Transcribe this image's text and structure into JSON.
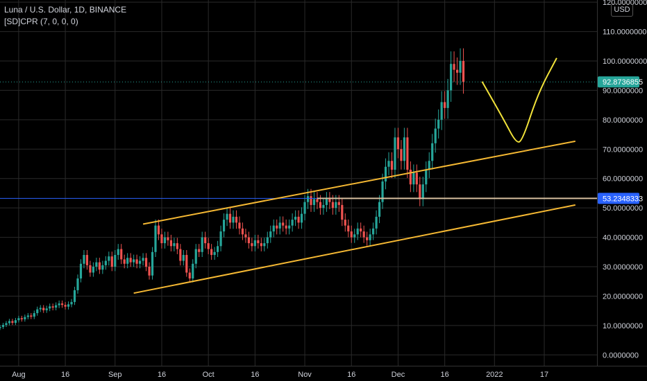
{
  "header": {
    "title": "Luna / U.S. Dollar, 1D, BINANCE",
    "indicator": "[SD]CPR (7, 0, 0, 0)",
    "currency": "USD"
  },
  "price_badges": {
    "last_price": "92.8736855",
    "horizontal_level": "53.2348333"
  },
  "colors": {
    "background": "#000000",
    "up": "#26a69a",
    "down": "#ef5350",
    "channel": "#f5b833",
    "drawing": "#f2e33a",
    "level_line": "#2962ff",
    "horizontal_ray": "#d8c0a0",
    "last_price_badge": "#26a69a",
    "level_badge": "#2962ff",
    "grid": "#2a2a2a",
    "axis_text": "#d1d4dc"
  },
  "chart_data": {
    "type": "candlestick",
    "title": "Luna / U.S. Dollar, 1D, BINANCE",
    "ylim": [
      -2,
      124
    ],
    "y_ticks": [
      {
        "value": 0,
        "label": "0.0000000"
      },
      {
        "value": 10,
        "label": "10.0000000"
      },
      {
        "value": 20,
        "label": "20.0000000"
      },
      {
        "value": 30,
        "label": "30.0000000"
      },
      {
        "value": 40,
        "label": "40.0000000"
      },
      {
        "value": 50,
        "label": "50.0000000"
      },
      {
        "value": 60,
        "label": "60.0000000"
      },
      {
        "value": 70,
        "label": "70.0000000"
      },
      {
        "value": 80,
        "label": "80.0000000"
      },
      {
        "value": 90,
        "label": "90.0000000"
      },
      {
        "value": 100,
        "label": "100.0000000"
      },
      {
        "value": 110,
        "label": "110.0000000"
      },
      {
        "value": 120,
        "label": "120.0000000"
      }
    ],
    "x_ticks": [
      {
        "date": "2021-08-01",
        "label": "Aug"
      },
      {
        "date": "2021-08-16",
        "label": "16"
      },
      {
        "date": "2021-09-01",
        "label": "Sep"
      },
      {
        "date": "2021-09-16",
        "label": "16"
      },
      {
        "date": "2021-10-01",
        "label": "Oct"
      },
      {
        "date": "2021-10-16",
        "label": "16"
      },
      {
        "date": "2021-11-01",
        "label": "Nov"
      },
      {
        "date": "2021-11-16",
        "label": "16"
      },
      {
        "date": "2021-12-01",
        "label": "Dec"
      },
      {
        "date": "2021-12-16",
        "label": "16"
      },
      {
        "date": "2022-01-01",
        "label": "2022"
      },
      {
        "date": "2022-01-17",
        "label": "17"
      }
    ],
    "start_date": "2021-07-26",
    "closes": [
      9.5,
      10.2,
      10.8,
      11.5,
      10.9,
      11.8,
      12.5,
      12.1,
      12.9,
      13.4,
      13.0,
      14.2,
      15.5,
      16.0,
      15.2,
      15.8,
      16.5,
      16.1,
      16.9,
      17.5,
      17.0,
      16.4,
      17.2,
      18.0,
      22.0,
      26.0,
      31.0,
      34.0,
      30.5,
      28.0,
      30.0,
      31.5,
      29.0,
      30.5,
      32.0,
      33.5,
      30.0,
      34.0,
      36.0,
      32.5,
      31.0,
      33.0,
      31.5,
      32.5,
      31.0,
      32.0,
      33.0,
      30.0,
      27.0,
      35.0,
      44.0,
      41.0,
      38.0,
      40.0,
      39.0,
      37.0,
      38.0,
      36.0,
      32.0,
      34.0,
      28.0,
      26.0,
      31.0,
      36.0,
      35.0,
      40.0,
      38.0,
      36.0,
      34.0,
      35.0,
      37.0,
      42.0,
      46.0,
      48.0,
      45.0,
      47.0,
      45.0,
      43.0,
      41.0,
      40.0,
      38.0,
      37.0,
      39.0,
      38.0,
      37.0,
      38.0,
      40.0,
      42.0,
      44.0,
      43.0,
      45.0,
      44.0,
      43.0,
      44.0,
      46.0,
      47.0,
      45.0,
      48.0,
      52.0,
      54.0,
      51.0,
      53.0,
      52.0,
      50.0,
      51.0,
      53.0,
      52.0,
      50.0,
      52.0,
      51.0,
      46.0,
      44.0,
      42.0,
      40.0,
      41.0,
      43.0,
      42.0,
      40.0,
      39.0,
      41.0,
      43.0,
      47.0,
      52.0,
      59.0,
      64.0,
      66.0,
      63.0,
      74.0,
      70.0,
      66.0,
      74.0,
      63.0,
      58.0,
      62.0,
      58.0,
      53.0,
      58.0,
      63.0,
      66.0,
      72.0,
      77.0,
      80.0,
      86.0,
      84.0,
      90.0,
      99.0,
      97.0,
      96.0,
      100.0,
      92.87
    ],
    "annotations": {
      "channel_upper": {
        "from": {
          "date": "2021-09-10",
          "value": 44.5
        },
        "to": {
          "date": "2022-01-27",
          "value": 72.7
        }
      },
      "channel_lower": {
        "from": {
          "date": "2021-09-07",
          "value": 21.0
        },
        "to": {
          "date": "2022-01-27",
          "value": 51.0
        }
      },
      "horizontal_level": {
        "value": 53.2348333
      },
      "last_price_line": {
        "value": 92.8736855
      },
      "projection_curve": [
        {
          "date": "2021-12-28",
          "value": 93.0
        },
        {
          "date": "2022-01-04",
          "value": 80.0
        },
        {
          "date": "2022-01-08",
          "value": 72.0
        },
        {
          "date": "2022-01-10",
          "value": 73.0
        },
        {
          "date": "2022-01-15",
          "value": 89.0
        },
        {
          "date": "2022-01-21",
          "value": 101.0
        }
      ]
    }
  }
}
